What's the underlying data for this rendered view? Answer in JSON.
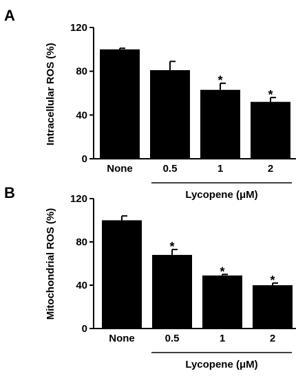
{
  "chart_data": [
    {
      "panel": "A",
      "type": "bar",
      "categories": [
        "None",
        "0.5",
        "1",
        "2"
      ],
      "values": [
        100,
        81,
        63,
        52
      ],
      "errors": [
        1,
        8,
        6,
        4
      ],
      "significance": [
        "",
        "",
        "*",
        "*"
      ],
      "ylabel": "Intracellular ROS (%)",
      "group_label": "Lycopene (μM)",
      "ylim": [
        0,
        120
      ],
      "yticks": [
        "0",
        "40",
        "80",
        "120"
      ],
      "ytick_values": [
        0,
        40,
        80,
        120
      ],
      "bar_color": "#000000",
      "grid": false
    },
    {
      "panel": "B",
      "type": "bar",
      "categories": [
        "None",
        "0.5",
        "1",
        "2"
      ],
      "values": [
        100,
        68,
        49,
        40
      ],
      "errors": [
        4,
        5,
        1,
        2
      ],
      "significance": [
        "",
        "*",
        "*",
        "*"
      ],
      "ylabel": "Mitochondrial ROS (%)",
      "group_label": "Lycopene (μM)",
      "ylim": [
        0,
        120
      ],
      "yticks": [
        "0",
        "40",
        "80",
        "120"
      ],
      "ytick_values": [
        0,
        40,
        80,
        120
      ],
      "bar_color": "#000000",
      "grid": false
    }
  ]
}
